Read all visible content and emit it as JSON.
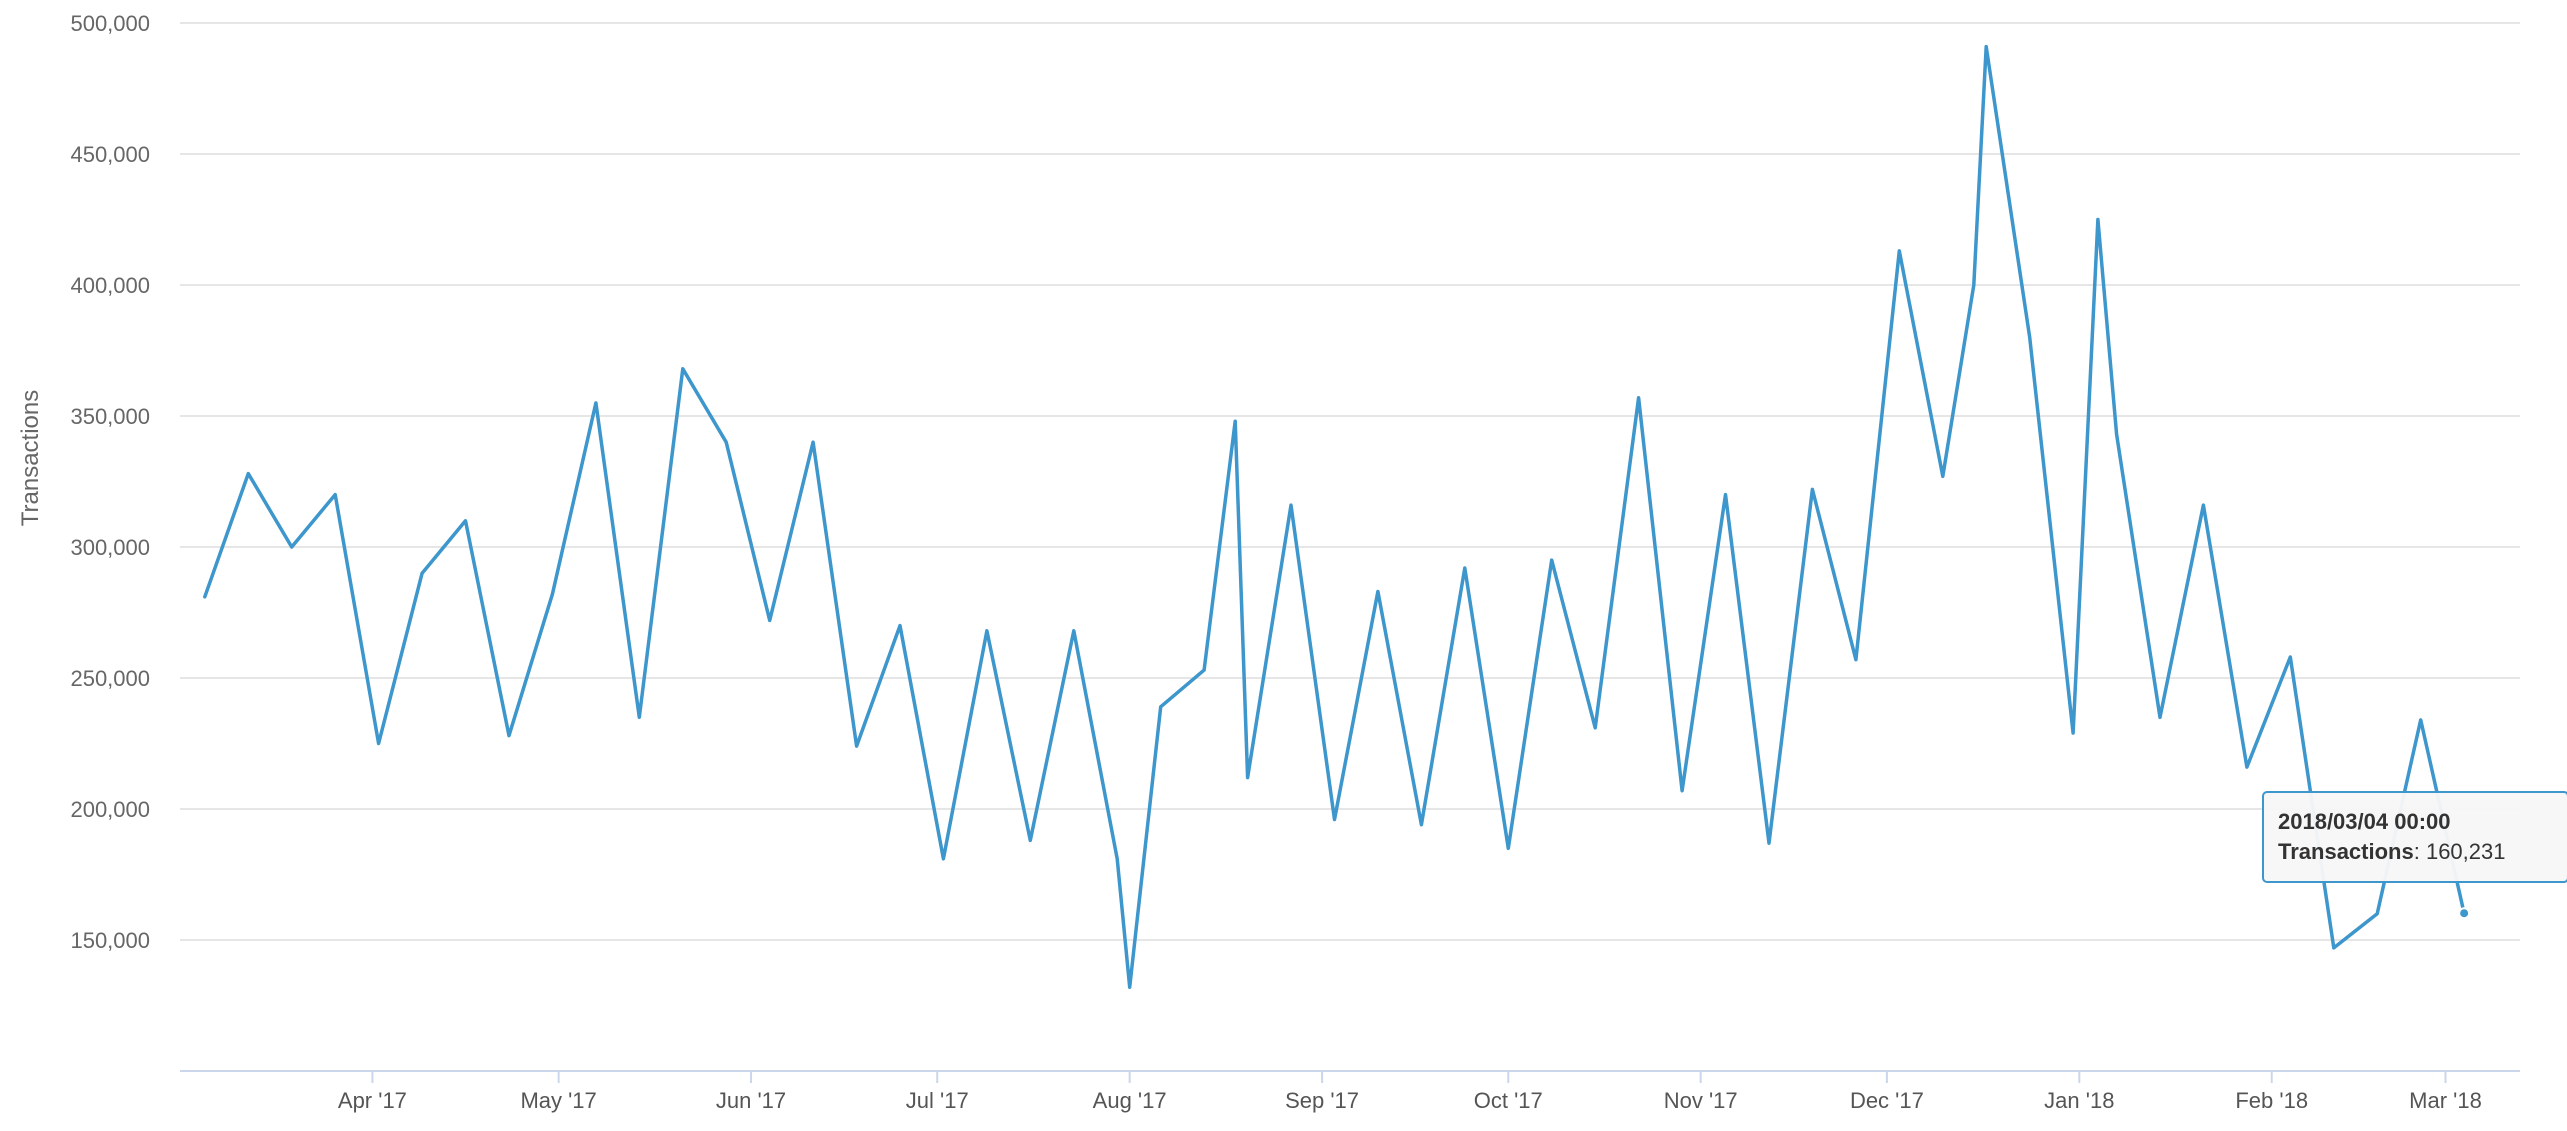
{
  "chart_data": {
    "type": "line",
    "ylabel": "Transactions",
    "ylim": [
      100000,
      500000
    ],
    "ytick_labels": [
      "150,000",
      "200,000",
      "250,000",
      "300,000",
      "350,000",
      "400,000",
      "450,000",
      "500,000"
    ],
    "xtick_labels": [
      "Apr '17",
      "May '17",
      "Jun '17",
      "Jul '17",
      "Aug '17",
      "Sep '17",
      "Oct '17",
      "Nov '17",
      "Dec '17",
      "Jan '18",
      "Feb '18",
      "Mar '18"
    ],
    "series_color": "#3d96cc",
    "grid": true,
    "series": [
      {
        "name": "Transactions",
        "x": [
          "2017-03-05",
          "2017-03-12",
          "2017-03-19",
          "2017-03-26",
          "2017-04-02",
          "2017-04-09",
          "2017-04-16",
          "2017-04-23",
          "2017-04-30",
          "2017-05-07",
          "2017-05-14",
          "2017-05-21",
          "2017-05-28",
          "2017-06-04",
          "2017-06-11",
          "2017-06-18",
          "2017-06-25",
          "2017-07-02",
          "2017-07-09",
          "2017-07-16",
          "2017-07-23",
          "2017-07-30",
          "2017-08-01",
          "2017-08-06",
          "2017-08-13",
          "2017-08-18",
          "2017-08-20",
          "2017-08-27",
          "2017-09-03",
          "2017-09-10",
          "2017-09-17",
          "2017-09-24",
          "2017-10-01",
          "2017-10-08",
          "2017-10-15",
          "2017-10-22",
          "2017-10-29",
          "2017-11-05",
          "2017-11-12",
          "2017-11-19",
          "2017-11-26",
          "2017-12-03",
          "2017-12-10",
          "2017-12-15",
          "2017-12-17",
          "2017-12-24",
          "2017-12-31",
          "2018-01-04",
          "2018-01-07",
          "2018-01-14",
          "2018-01-21",
          "2018-01-28",
          "2018-02-04",
          "2018-02-11",
          "2018-02-18",
          "2018-02-25",
          "2018-03-04"
        ],
        "values": [
          281000,
          328000,
          300000,
          320000,
          225000,
          290000,
          310000,
          228000,
          282000,
          355000,
          235000,
          368000,
          340000,
          272000,
          340000,
          224000,
          270000,
          181000,
          268000,
          188000,
          268000,
          181000,
          132000,
          239000,
          253000,
          348000,
          212000,
          316000,
          196000,
          283000,
          194000,
          292000,
          185000,
          295000,
          231000,
          357000,
          207000,
          320000,
          187000,
          322000,
          257000,
          413000,
          327000,
          400000,
          491000,
          380000,
          229000,
          425000,
          343000,
          235000,
          316000,
          216000,
          258000,
          147000,
          160000,
          234000,
          160231
        ]
      }
    ],
    "tooltip": {
      "date": "2018/03/04 00:00",
      "label": "Transactions",
      "value_text": "160,231"
    }
  }
}
